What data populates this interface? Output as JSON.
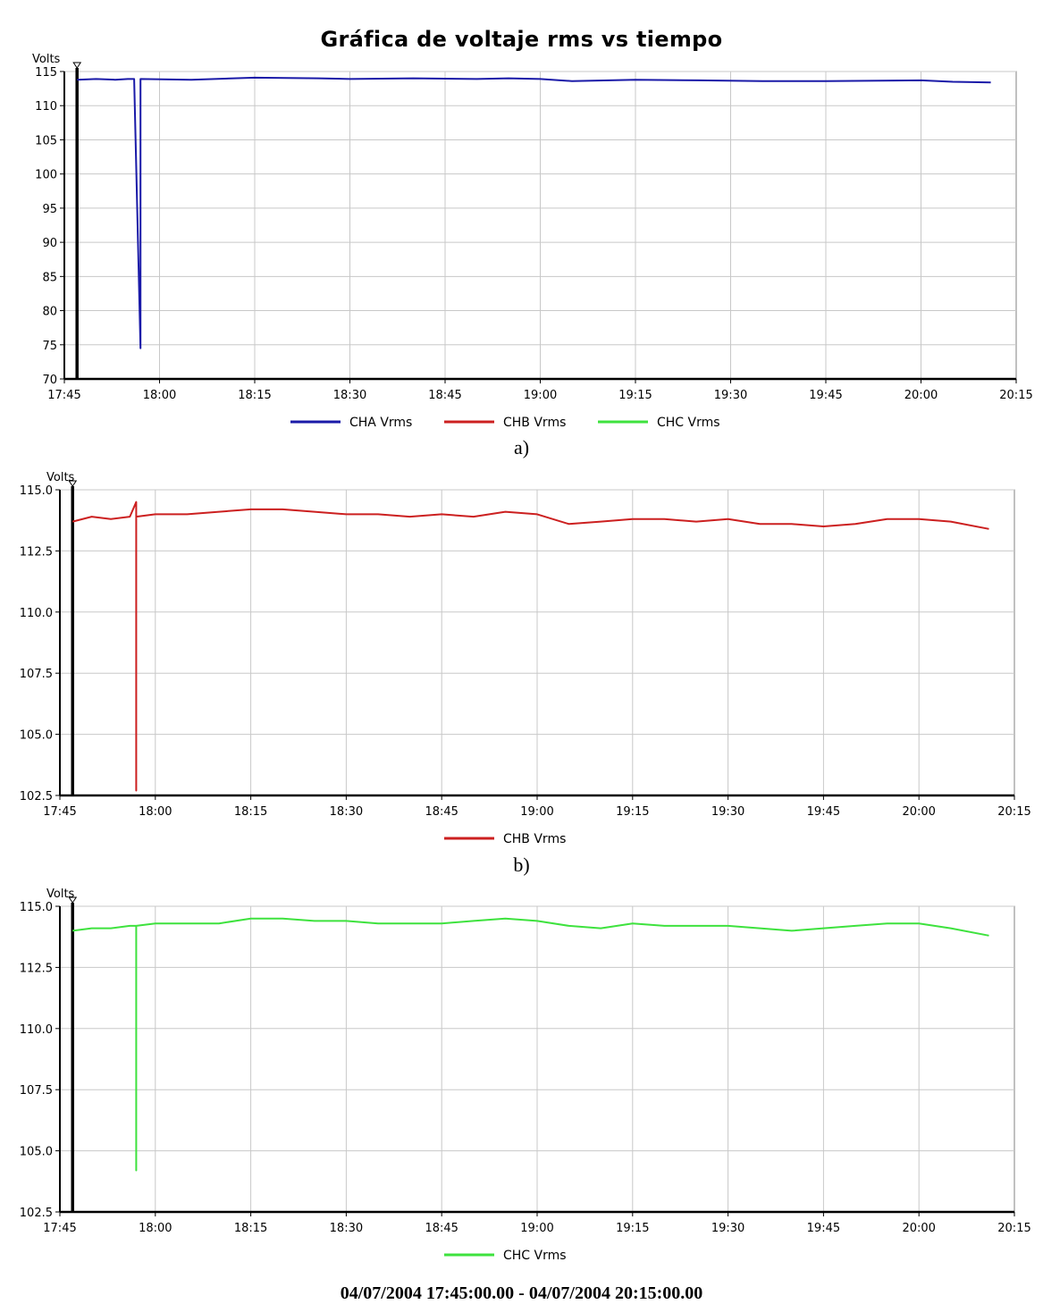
{
  "figure": {
    "title": "Gráfica de voltaje rms vs tiempo",
    "caption_a": "a)",
    "caption_b": "b)",
    "time_range": "04/07/2004 17:45:00.00 - 04/07/2004 20:15:00.00"
  },
  "colors": {
    "CHA": "#1a1aa8",
    "CHB": "#cc2020",
    "CHC": "#3ee23e",
    "grid": "#c8c8c8"
  },
  "chart_data": [
    {
      "type": "line",
      "title": "Gráfica de voltaje rms vs tiempo",
      "ylabel": "Volts",
      "xlabel": "",
      "x_ticks": [
        "17:45",
        "18:00",
        "18:15",
        "18:30",
        "18:45",
        "19:00",
        "19:15",
        "19:30",
        "19:45",
        "20:00",
        "20:15"
      ],
      "y_ticks": [
        "70",
        "75",
        "80",
        "85",
        "90",
        "95",
        "100",
        "105",
        "110",
        "115"
      ],
      "xlim": [
        "17:45",
        "20:15"
      ],
      "ylim": [
        70,
        115
      ],
      "grid": true,
      "legend": [
        "CHA Vrms",
        "CHB Vrms",
        "CHC Vrms"
      ],
      "legend_position": "bottom",
      "cursor_time": "17:47",
      "series": [
        {
          "name": "CHA Vrms",
          "color_key": "CHA",
          "points": [
            [
              "17:47",
              113.8
            ],
            [
              "17:50",
              113.9
            ],
            [
              "17:53",
              113.8
            ],
            [
              "17:55",
              113.9
            ],
            [
              "17:56",
              113.9
            ],
            [
              "17:57",
              74.5
            ],
            [
              "17:57",
              113.9
            ],
            [
              "18:05",
              113.8
            ],
            [
              "18:15",
              114.1
            ],
            [
              "18:25",
              114.0
            ],
            [
              "18:30",
              113.9
            ],
            [
              "18:40",
              114.0
            ],
            [
              "18:50",
              113.9
            ],
            [
              "18:55",
              114.0
            ],
            [
              "19:00",
              113.9
            ],
            [
              "19:05",
              113.6
            ],
            [
              "19:15",
              113.8
            ],
            [
              "19:25",
              113.7
            ],
            [
              "19:35",
              113.6
            ],
            [
              "19:45",
              113.6
            ],
            [
              "20:00",
              113.7
            ],
            [
              "20:05",
              113.5
            ],
            [
              "20:11",
              113.4
            ]
          ]
        }
      ]
    },
    {
      "type": "line",
      "title": "",
      "ylabel": "Volts",
      "xlabel": "",
      "x_ticks": [
        "17:45",
        "18:00",
        "18:15",
        "18:30",
        "18:45",
        "19:00",
        "19:15",
        "19:30",
        "19:45",
        "20:00",
        "20:15"
      ],
      "y_ticks": [
        "102.5",
        "105.0",
        "107.5",
        "110.0",
        "112.5",
        "115.0"
      ],
      "xlim": [
        "17:45",
        "20:15"
      ],
      "ylim": [
        102.5,
        115.0
      ],
      "grid": true,
      "legend": [
        "CHB Vrms"
      ],
      "legend_position": "bottom",
      "cursor_time": "17:47",
      "series": [
        {
          "name": "CHB Vrms",
          "color_key": "CHB",
          "points": [
            [
              "17:47",
              113.7
            ],
            [
              "17:50",
              113.9
            ],
            [
              "17:53",
              113.8
            ],
            [
              "17:56",
              113.9
            ],
            [
              "17:57",
              114.5
            ],
            [
              "17:57",
              102.7
            ],
            [
              "17:57",
              113.9
            ],
            [
              "18:00",
              114.0
            ],
            [
              "18:05",
              114.0
            ],
            [
              "18:10",
              114.1
            ],
            [
              "18:15",
              114.2
            ],
            [
              "18:20",
              114.2
            ],
            [
              "18:25",
              114.1
            ],
            [
              "18:30",
              114.0
            ],
            [
              "18:35",
              114.0
            ],
            [
              "18:40",
              113.9
            ],
            [
              "18:45",
              114.0
            ],
            [
              "18:50",
              113.9
            ],
            [
              "18:55",
              114.1
            ],
            [
              "19:00",
              114.0
            ],
            [
              "19:05",
              113.6
            ],
            [
              "19:10",
              113.7
            ],
            [
              "19:15",
              113.8
            ],
            [
              "19:20",
              113.8
            ],
            [
              "19:25",
              113.7
            ],
            [
              "19:30",
              113.8
            ],
            [
              "19:35",
              113.6
            ],
            [
              "19:40",
              113.6
            ],
            [
              "19:45",
              113.5
            ],
            [
              "19:50",
              113.6
            ],
            [
              "19:55",
              113.8
            ],
            [
              "20:00",
              113.8
            ],
            [
              "20:05",
              113.7
            ],
            [
              "20:11",
              113.4
            ]
          ]
        }
      ]
    },
    {
      "type": "line",
      "title": "",
      "ylabel": "Volts",
      "xlabel": "",
      "x_ticks": [
        "17:45",
        "18:00",
        "18:15",
        "18:30",
        "18:45",
        "19:00",
        "19:15",
        "19:30",
        "19:45",
        "20:00",
        "20:15"
      ],
      "y_ticks": [
        "102.5",
        "105.0",
        "107.5",
        "110.0",
        "112.5",
        "115.0"
      ],
      "xlim": [
        "17:45",
        "20:15"
      ],
      "ylim": [
        102.5,
        115.0
      ],
      "grid": true,
      "legend": [
        "CHC Vrms"
      ],
      "legend_position": "bottom",
      "cursor_time": "17:47",
      "series": [
        {
          "name": "CHC Vrms",
          "color_key": "CHC",
          "points": [
            [
              "17:47",
              114.0
            ],
            [
              "17:50",
              114.1
            ],
            [
              "17:53",
              114.1
            ],
            [
              "17:56",
              114.2
            ],
            [
              "17:57",
              114.2
            ],
            [
              "17:57",
              104.2
            ],
            [
              "17:57",
              114.2
            ],
            [
              "18:00",
              114.3
            ],
            [
              "18:05",
              114.3
            ],
            [
              "18:10",
              114.3
            ],
            [
              "18:15",
              114.5
            ],
            [
              "18:20",
              114.5
            ],
            [
              "18:25",
              114.4
            ],
            [
              "18:30",
              114.4
            ],
            [
              "18:35",
              114.3
            ],
            [
              "18:40",
              114.3
            ],
            [
              "18:45",
              114.3
            ],
            [
              "18:50",
              114.4
            ],
            [
              "18:55",
              114.5
            ],
            [
              "19:00",
              114.4
            ],
            [
              "19:05",
              114.2
            ],
            [
              "19:10",
              114.1
            ],
            [
              "19:15",
              114.3
            ],
            [
              "19:20",
              114.2
            ],
            [
              "19:25",
              114.2
            ],
            [
              "19:30",
              114.2
            ],
            [
              "19:35",
              114.1
            ],
            [
              "19:40",
              114.0
            ],
            [
              "19:45",
              114.1
            ],
            [
              "19:50",
              114.2
            ],
            [
              "19:55",
              114.3
            ],
            [
              "20:00",
              114.3
            ],
            [
              "20:05",
              114.1
            ],
            [
              "20:11",
              113.8
            ]
          ]
        }
      ]
    }
  ]
}
